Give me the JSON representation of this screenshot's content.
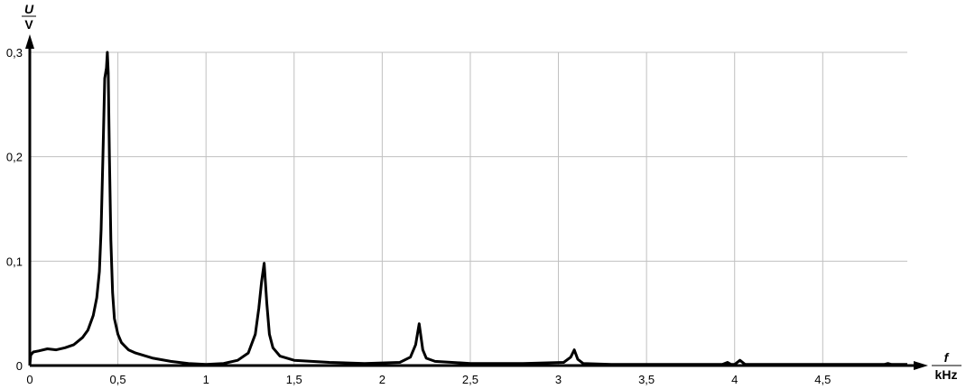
{
  "chart_data": {
    "type": "line",
    "title": "",
    "xlabel": {
      "symbol": "f",
      "unit": "kHz"
    },
    "ylabel": {
      "symbol": "U",
      "unit": "V"
    },
    "xlim": [
      0,
      4.98
    ],
    "ylim": [
      0,
      0.3
    ],
    "grid": true,
    "line_color": "#000000",
    "grid_color": "#c0c0c0",
    "x_ticks": [
      0,
      0.5,
      1,
      1.5,
      2,
      2.5,
      3,
      3.5,
      4,
      4.5
    ],
    "x_tick_labels": [
      "0",
      "0,5",
      "1",
      "1,5",
      "2",
      "2,5",
      "3",
      "3,5",
      "4",
      "4,5"
    ],
    "y_ticks": [
      0,
      0.1,
      0.2,
      0.3
    ],
    "y_tick_labels": [
      "0",
      "0,1",
      "0,2",
      "0,3"
    ],
    "series": [
      {
        "x": [
          0,
          0.005,
          0.02,
          0.05,
          0.1,
          0.15,
          0.2,
          0.25,
          0.3,
          0.33,
          0.36,
          0.38,
          0.395,
          0.405,
          0.415,
          0.425,
          0.435,
          0.44,
          0.445,
          0.452,
          0.46,
          0.47,
          0.48,
          0.5,
          0.52,
          0.56,
          0.6,
          0.7,
          0.8,
          0.9,
          1.0,
          1.1,
          1.18,
          1.24,
          1.28,
          1.3,
          1.315,
          1.33,
          1.345,
          1.36,
          1.38,
          1.42,
          1.5,
          1.7,
          1.9,
          2.1,
          2.16,
          2.19,
          2.21,
          2.23,
          2.25,
          2.3,
          2.5,
          2.8,
          3.03,
          3.07,
          3.09,
          3.11,
          3.14,
          3.3,
          3.6,
          3.93,
          3.96,
          3.98,
          4.0,
          4.03,
          4.06,
          4.3,
          4.85,
          4.87,
          4.89,
          4.98
        ],
        "y": [
          0,
          0.01,
          0.013,
          0.014,
          0.016,
          0.015,
          0.017,
          0.02,
          0.027,
          0.034,
          0.048,
          0.065,
          0.09,
          0.13,
          0.2,
          0.275,
          0.285,
          0.3,
          0.28,
          0.2,
          0.12,
          0.07,
          0.045,
          0.03,
          0.022,
          0.015,
          0.012,
          0.007,
          0.004,
          0.002,
          0.001,
          0.002,
          0.005,
          0.012,
          0.03,
          0.055,
          0.08,
          0.098,
          0.06,
          0.03,
          0.017,
          0.009,
          0.005,
          0.003,
          0.002,
          0.003,
          0.008,
          0.02,
          0.04,
          0.015,
          0.007,
          0.004,
          0.002,
          0.002,
          0.003,
          0.008,
          0.015,
          0.006,
          0.002,
          0.001,
          0.001,
          0.001,
          0.003,
          0.001,
          0.001,
          0.005,
          0.001,
          0.001,
          0.001,
          0.002,
          0.001,
          0.001
        ]
      }
    ]
  }
}
